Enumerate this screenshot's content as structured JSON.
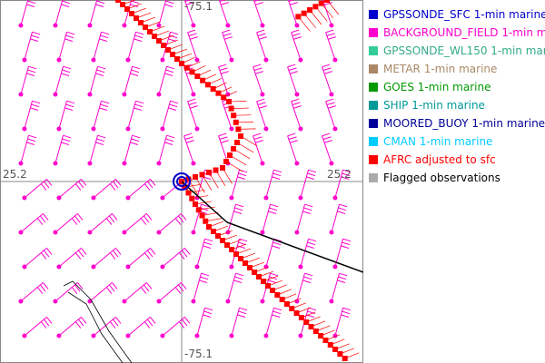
{
  "axis_labels": {
    "top": "-75.1",
    "bottom": "-75.1",
    "left": "25.2",
    "right": "25.2"
  },
  "legend": [
    {
      "label": "GPSSONDE_SFC 1-min marine",
      "color": "#0000cc",
      "text_color": "#0000cc"
    },
    {
      "label": "BACKGROUND_FIELD 1-min m",
      "color": "#ff00cc",
      "text_color": "#ff00cc"
    },
    {
      "label": "GPSSONDE_WL150 1-min mar",
      "color": "#33cc99",
      "text_color": "#33aa88"
    },
    {
      "label": "METAR 1-min marine",
      "color": "#aa8866",
      "text_color": "#aa8866"
    },
    {
      "label": "GOES 1-min marine",
      "color": "#009900",
      "text_color": "#009900"
    },
    {
      "label": "SHIP 1-min marine",
      "color": "#009999",
      "text_color": "#009999"
    },
    {
      "label": "MOORED_BUOY 1-min marine",
      "color": "#000099",
      "text_color": "#000099"
    },
    {
      "label": "CMAN 1-min marine",
      "color": "#00ccff",
      "text_color": "#00ccff"
    },
    {
      "label": "AFRC adjusted to sfc",
      "color": "#ff0000",
      "text_color": "#ff0000"
    },
    {
      "label": "Flagged observations",
      "color": "#aaaaaa",
      "text_color": "#000000"
    }
  ]
}
